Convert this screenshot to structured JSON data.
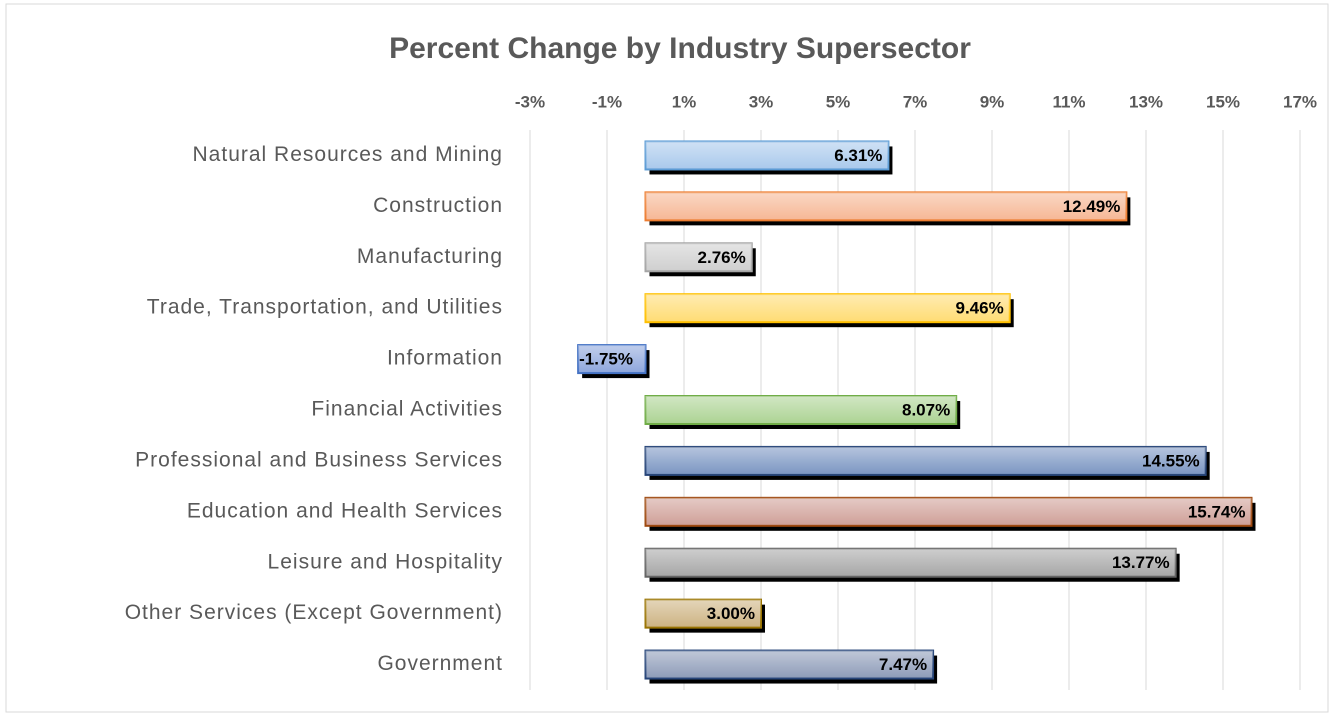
{
  "chart_data": {
    "type": "barh",
    "title": "Percent Change by Industry Supersector",
    "categories": [
      "Natural Resources and Mining",
      "Construction",
      "Manufacturing",
      "Trade, Transportation, and Utilities",
      "Information",
      "Financial Activities",
      "Professional and Business Services",
      "Education and Health Services",
      "Leisure and Hospitality",
      "Other Services (Except Government)",
      "Government"
    ],
    "values": [
      6.31,
      12.49,
      2.76,
      9.46,
      -1.75,
      8.07,
      14.55,
      15.74,
      13.77,
      3.0,
      7.47
    ],
    "value_labels": [
      "6.31%",
      "12.49%",
      "2.76%",
      "9.46%",
      "-1.75%",
      "8.07%",
      "14.55%",
      "15.74%",
      "13.77%",
      "3.00%",
      "7.47%"
    ],
    "colors": [
      "#a9c9ec",
      "#f6b795",
      "#cfcfcf",
      "#ffdc73",
      "#8ea6dc",
      "#acd393",
      "#7a95c2",
      "#cf9f97",
      "#a6a6a6",
      "#cdb381",
      "#8d9bb8"
    ],
    "edgecolors": [
      "#5b9bd5",
      "#ed7d31",
      "#a5a5a5",
      "#ffc000",
      "#4472c4",
      "#70ad47",
      "#264478",
      "#9e480e",
      "#636363",
      "#997300",
      "#264478"
    ],
    "xlim": [
      -3,
      17
    ],
    "xticks": [
      {
        "value": -3,
        "label": "-3%"
      },
      {
        "value": -1,
        "label": "-1%"
      },
      {
        "value": 1,
        "label": "1%"
      },
      {
        "value": 3,
        "label": "3%"
      },
      {
        "value": 5,
        "label": "5%"
      },
      {
        "value": 7,
        "label": "7%"
      },
      {
        "value": 9,
        "label": "9%"
      },
      {
        "value": 11,
        "label": "11%"
      },
      {
        "value": 13,
        "label": "13%"
      },
      {
        "value": 15,
        "label": "15%"
      },
      {
        "value": 17,
        "label": "17%"
      }
    ],
    "grid": true
  }
}
